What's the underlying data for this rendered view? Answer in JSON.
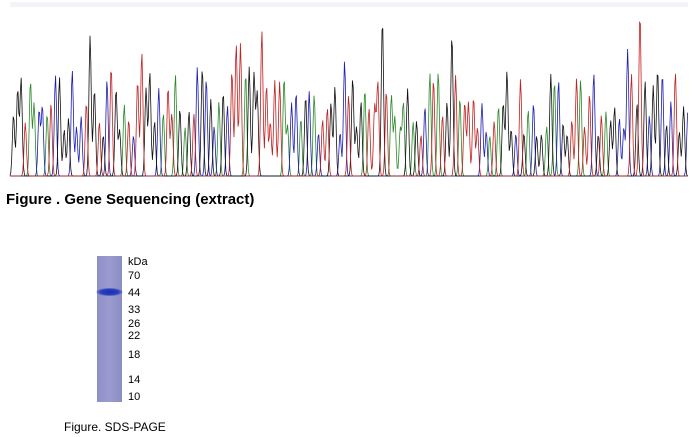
{
  "sequencing": {
    "caption": "Figure . Gene Sequencing (extract)"
  },
  "gel": {
    "unit": "kDa",
    "markers": [
      "70",
      "44",
      "33",
      "26",
      "22",
      "18",
      "14",
      "10"
    ],
    "caption": "Figure. SDS-PAGE"
  }
}
